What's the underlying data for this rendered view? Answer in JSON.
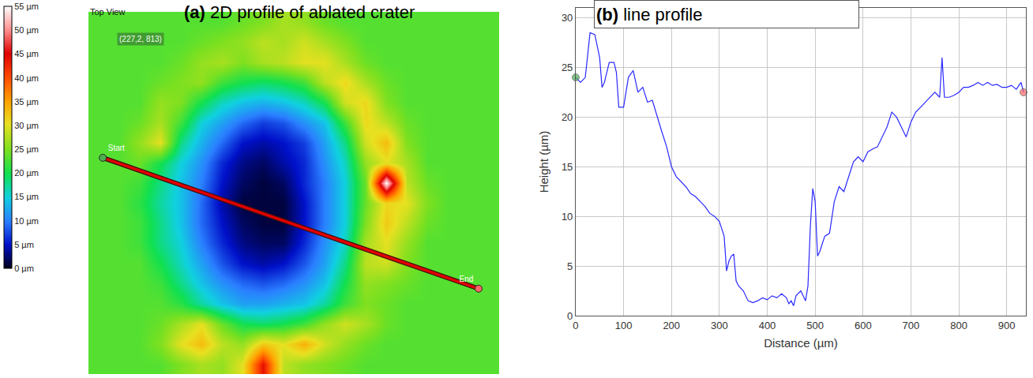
{
  "chart_data": [
    {
      "type": "heatmap",
      "title": "(a) 2D profile of ablated crater",
      "annotations": [
        {
          "text": "Top View"
        },
        {
          "text": "(227,2, 813)"
        }
      ],
      "tick_labels": false,
      "z": [
        [
          23,
          23,
          23,
          23,
          23,
          23,
          23,
          24,
          25,
          27,
          26,
          24,
          23,
          23,
          23,
          23,
          23,
          23,
          23,
          23
        ],
        [
          23,
          23,
          23,
          23,
          23,
          24,
          25,
          26,
          28,
          27,
          29,
          27,
          25,
          23,
          23,
          23,
          23,
          23,
          23,
          23
        ],
        [
          23,
          23,
          23,
          23,
          24,
          26,
          27,
          25,
          27,
          28,
          30,
          30,
          27,
          24,
          23,
          23,
          23,
          23,
          23,
          23
        ],
        [
          23,
          23,
          23,
          24,
          25,
          26,
          22,
          20,
          19,
          20,
          22,
          28,
          31,
          27,
          24,
          23,
          23,
          23,
          23,
          23
        ],
        [
          23,
          23,
          23,
          26,
          25,
          20,
          16,
          14,
          13,
          14,
          16,
          20,
          29,
          31,
          25,
          23,
          23,
          23,
          23,
          23
        ],
        [
          23,
          23,
          24,
          27,
          22,
          15,
          12,
          9,
          7,
          8,
          11,
          14,
          22,
          31,
          28,
          24,
          23,
          23,
          23,
          23
        ],
        [
          23,
          23,
          26,
          30,
          18,
          13,
          9,
          5,
          4,
          5,
          7,
          12,
          18,
          29,
          33,
          25,
          23,
          23,
          23,
          23
        ],
        [
          23,
          23,
          24,
          20,
          15,
          11,
          6,
          3,
          2,
          4,
          6,
          11,
          16,
          26,
          30,
          27,
          23,
          23,
          23,
          23
        ],
        [
          23,
          23,
          22,
          18,
          14,
          10,
          5,
          2,
          1,
          2,
          6,
          10,
          15,
          24,
          55,
          28,
          24,
          23,
          23,
          23
        ],
        [
          23,
          23,
          21,
          17,
          14,
          9,
          4,
          1,
          1,
          1,
          5,
          10,
          15,
          24,
          31,
          30,
          25,
          23,
          23,
          23
        ],
        [
          23,
          23,
          22,
          18,
          14,
          9,
          5,
          2,
          1,
          1,
          5,
          10,
          15,
          25,
          32,
          28,
          24,
          23,
          23,
          23
        ],
        [
          23,
          23,
          22,
          18,
          15,
          10,
          6,
          3,
          2,
          2,
          6,
          11,
          16,
          27,
          30,
          26,
          23,
          23,
          23,
          23
        ],
        [
          23,
          23,
          23,
          20,
          16,
          12,
          8,
          5,
          4,
          5,
          8,
          12,
          18,
          28,
          29,
          25,
          23,
          23,
          23,
          23
        ],
        [
          23,
          23,
          23,
          22,
          18,
          14,
          11,
          9,
          8,
          9,
          11,
          14,
          20,
          26,
          25,
          24,
          23,
          23,
          23,
          23
        ],
        [
          23,
          23,
          23,
          23,
          21,
          17,
          14,
          12,
          12,
          13,
          14,
          17,
          22,
          25,
          24,
          23,
          23,
          23,
          23,
          23
        ],
        [
          23,
          23,
          23,
          24,
          27,
          30,
          24,
          20,
          19,
          20,
          22,
          26,
          29,
          27,
          24,
          23,
          23,
          23,
          23,
          23
        ],
        [
          23,
          23,
          23,
          25,
          30,
          33,
          28,
          26,
          32,
          30,
          34,
          29,
          26,
          24,
          23,
          23,
          23,
          23,
          23,
          23
        ],
        [
          23,
          23,
          23,
          23,
          25,
          27,
          26,
          30,
          44,
          28,
          26,
          25,
          24,
          23,
          23,
          23,
          23,
          23,
          23,
          23
        ]
      ],
      "colorbar": {
        "range": [
          0,
          55
        ],
        "ticks": [
          {
            "value": 0,
            "label": "0 µm"
          },
          {
            "value": 5,
            "label": "5 µm"
          },
          {
            "value": 10,
            "label": "10 µm"
          },
          {
            "value": 15,
            "label": "15 µm"
          },
          {
            "value": 20,
            "label": "20 µm"
          },
          {
            "value": 25,
            "label": "25 µm"
          },
          {
            "value": 30,
            "label": "30 µm"
          },
          {
            "value": 35,
            "label": "35 µm"
          },
          {
            "value": 40,
            "label": "40 µm"
          },
          {
            "value": 45,
            "label": "45 µm"
          },
          {
            "value": 50,
            "label": "50 µm"
          },
          {
            "value": 55,
            "label": "55 µm"
          }
        ]
      },
      "line": {
        "x": [
          0.2,
          18.5
        ],
        "y": [
          6.75,
          13.25
        ],
        "labels": [
          "Start",
          "End"
        ],
        "color": "#e00000"
      }
    },
    {
      "type": "line",
      "title": "(b) line profile",
      "x_label": "Distance (µm)",
      "y_label": "Height (µm)",
      "color": "#2a2aff",
      "grid": true,
      "xlim": [
        0,
        940
      ],
      "ylim": [
        0,
        31
      ],
      "xticks": [
        0,
        100,
        200,
        300,
        400,
        500,
        600,
        700,
        800,
        900
      ],
      "yticks": [
        0,
        5,
        10,
        15,
        20,
        25,
        30
      ],
      "x": [
        0,
        10,
        20,
        30,
        40,
        45,
        50,
        55,
        60,
        70,
        80,
        85,
        90,
        100,
        105,
        110,
        120,
        125,
        130,
        140,
        150,
        160,
        170,
        180,
        190,
        200,
        210,
        220,
        230,
        240,
        250,
        260,
        270,
        280,
        290,
        300,
        305,
        310,
        315,
        320,
        325,
        330,
        335,
        340,
        350,
        360,
        370,
        380,
        390,
        400,
        410,
        420,
        430,
        440,
        445,
        450,
        455,
        460,
        470,
        480,
        485,
        490,
        495,
        500,
        505,
        510,
        520,
        530,
        540,
        550,
        560,
        570,
        580,
        590,
        600,
        610,
        620,
        630,
        640,
        650,
        660,
        670,
        680,
        690,
        700,
        710,
        720,
        730,
        740,
        750,
        760,
        765,
        770,
        780,
        790,
        800,
        810,
        820,
        830,
        840,
        850,
        860,
        870,
        880,
        890,
        900,
        910,
        920,
        930,
        935
      ],
      "values": [
        24,
        23.5,
        24,
        28.5,
        28.3,
        27,
        26,
        23,
        23.5,
        25.5,
        25.5,
        24.5,
        21,
        21,
        22.5,
        24,
        24.7,
        23.5,
        22.5,
        23,
        21.5,
        21.7,
        20,
        18.5,
        17,
        15,
        14,
        13.5,
        13,
        12.3,
        12,
        11.5,
        11,
        10.3,
        10,
        9.5,
        8.8,
        8,
        4.5,
        5.5,
        6,
        6.2,
        3.5,
        3,
        2.5,
        1.5,
        1.3,
        1.5,
        1.8,
        1.6,
        2,
        1.8,
        2.2,
        1.8,
        1.2,
        1.5,
        1,
        2,
        2.5,
        1.5,
        3,
        9,
        12.8,
        11.5,
        6,
        6.5,
        8,
        8.3,
        11.5,
        13,
        12.5,
        14,
        15.5,
        16,
        15.5,
        16.5,
        16.8,
        17,
        18,
        19,
        20.5,
        20,
        19,
        18,
        19.5,
        20.5,
        21,
        21.5,
        22,
        22.5,
        22,
        26,
        22,
        22,
        22.2,
        22.5,
        23,
        23,
        23.2,
        23.5,
        23.2,
        23.5,
        23.2,
        23.3,
        23,
        23,
        23.2,
        22.8,
        23.5,
        22.5
      ]
    }
  ]
}
